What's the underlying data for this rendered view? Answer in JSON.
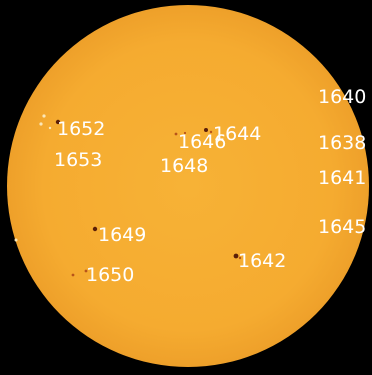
{
  "colors": {
    "background": "#000000",
    "sun_disk": "#f5ad31",
    "sun_edge": "#eea02a",
    "spot_dark": "#5a1e08",
    "spot_penumbra": "#b8541a",
    "label_text": "#ffffff"
  },
  "regions": [
    {
      "id": "1640",
      "label": "1640"
    },
    {
      "id": "1638",
      "label": "1638"
    },
    {
      "id": "1641",
      "label": "1641"
    },
    {
      "id": "1645",
      "label": "1645"
    },
    {
      "id": "1652",
      "label": "1652"
    },
    {
      "id": "1653",
      "label": "1653"
    },
    {
      "id": "1646",
      "label": "1646"
    },
    {
      "id": "1644",
      "label": "1644"
    },
    {
      "id": "1648",
      "label": "1648"
    },
    {
      "id": "1649",
      "label": "1649"
    },
    {
      "id": "1650",
      "label": "1650"
    },
    {
      "id": "1642",
      "label": "1642"
    }
  ]
}
